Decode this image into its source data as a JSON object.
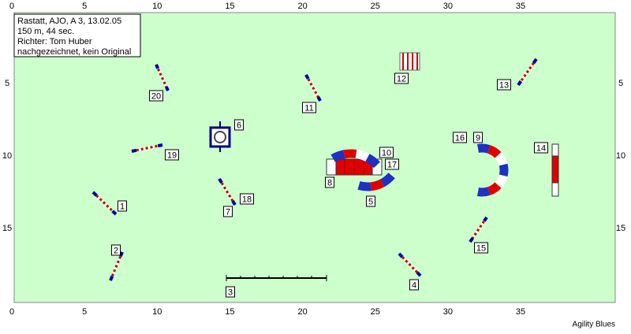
{
  "header": {
    "lines": [
      "Rastatt, AJO, A 3, 13.02.05",
      "150 m, 44 sec.",
      "Richter: Tom Huber",
      "nachgezeichnet, kein Original"
    ]
  },
  "axis": {
    "x_labels": [
      0,
      5,
      10,
      15,
      20,
      25,
      30,
      35
    ],
    "y_labels": [
      5,
      10,
      15
    ]
  },
  "obstacles": {
    "labels": [
      "1",
      "2",
      "3",
      "4",
      "5",
      "6",
      "7",
      "8",
      "9",
      "10",
      "11",
      "12",
      "13",
      "14",
      "15",
      "16",
      "17",
      "18",
      "19",
      "20"
    ]
  },
  "footer": {
    "credit": "Agility Blues"
  }
}
